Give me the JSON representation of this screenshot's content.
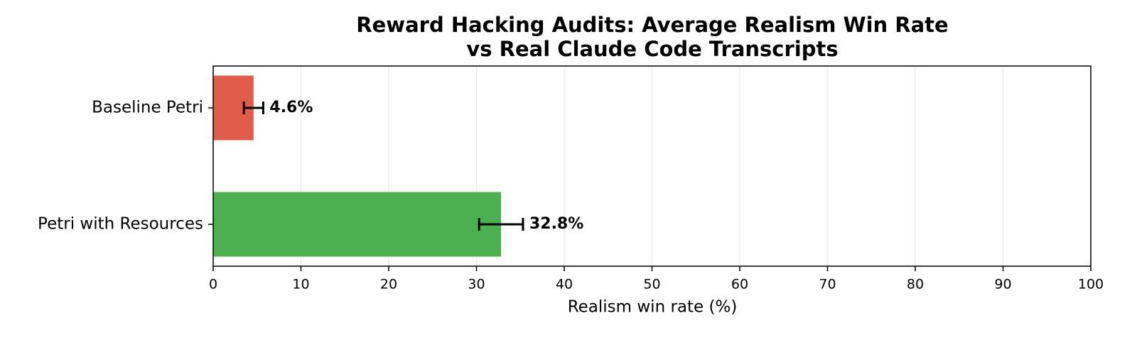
{
  "chart_data": {
    "type": "barh",
    "title": [
      "Reward Hacking Audits: Average Realism Win Rate",
      "vs Real Claude Code Transcripts"
    ],
    "x_label": "Realism win rate (%)",
    "categories": [
      "Baseline Petri",
      "Petri with Resources"
    ],
    "values": [
      4.6,
      32.8
    ],
    "value_labels": [
      "4.6%",
      "32.8%"
    ],
    "errors": [
      1.1,
      2.5
    ],
    "colors": [
      "#e05c4a",
      "#4caf50"
    ],
    "xlim": [
      0,
      100
    ],
    "xticks": [
      0,
      10,
      20,
      30,
      40,
      50,
      60,
      70,
      80,
      90,
      100
    ],
    "grid": true
  }
}
